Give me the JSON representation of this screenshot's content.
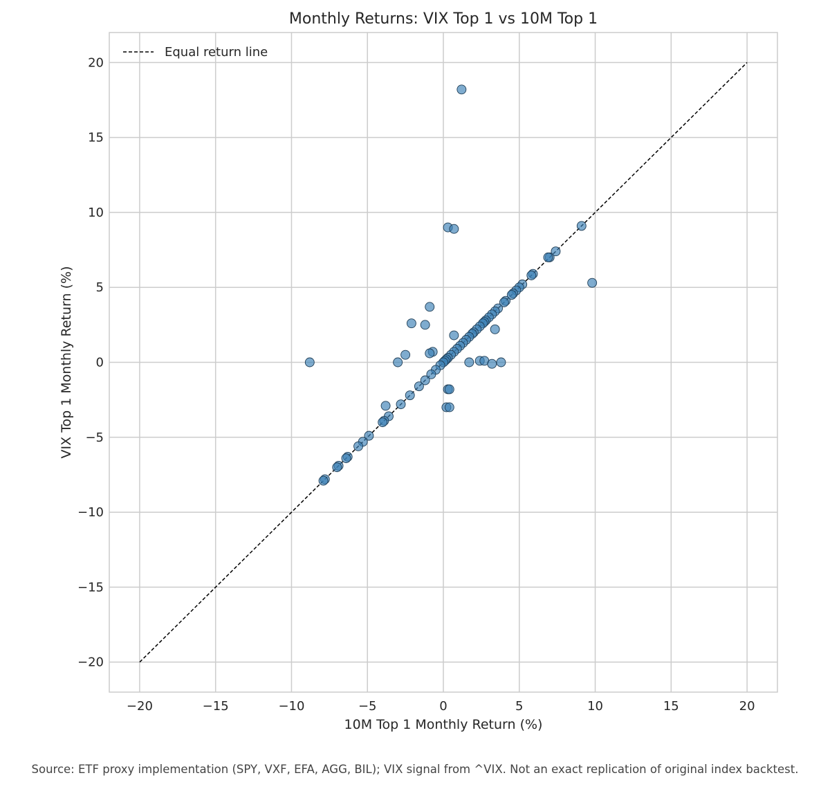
{
  "chart_data": {
    "type": "scatter",
    "title": "Monthly Returns: VIX Top 1 vs 10M Top 1",
    "xlabel": "10M Top 1 Monthly Return (%)",
    "ylabel": "VIX Top 1 Monthly Return (%)",
    "xlim": [
      -22,
      22
    ],
    "ylim": [
      -22,
      22
    ],
    "xticks": [
      -20,
      -15,
      -10,
      -5,
      0,
      5,
      10,
      15,
      20
    ],
    "yticks": [
      -20,
      -15,
      -10,
      -5,
      0,
      5,
      10,
      15,
      20
    ],
    "tick_labels_x": [
      "−20",
      "−15",
      "−10",
      "−5",
      "0",
      "5",
      "10",
      "15",
      "20"
    ],
    "tick_labels_y": [
      "−20",
      "−15",
      "−10",
      "−5",
      "0",
      "5",
      "10",
      "15",
      "20"
    ],
    "grid": true,
    "legend_position": "top-left",
    "reference_line": {
      "name": "Equal return line",
      "x": [
        -20,
        20
      ],
      "y": [
        -20,
        20
      ],
      "style": "dashed",
      "color": "#000000"
    },
    "point_color": "#3b7fb5",
    "points": [
      {
        "x": 1.2,
        "y": 18.2
      },
      {
        "x": 0.3,
        "y": 9.0
      },
      {
        "x": 0.7,
        "y": 8.9
      },
      {
        "x": 9.1,
        "y": 9.1
      },
      {
        "x": 9.8,
        "y": 5.3
      },
      {
        "x": 7.4,
        "y": 7.4
      },
      {
        "x": 7.0,
        "y": 7.0
      },
      {
        "x": 6.9,
        "y": 7.0
      },
      {
        "x": 5.9,
        "y": 5.9
      },
      {
        "x": 5.8,
        "y": 5.8
      },
      {
        "x": 5.2,
        "y": 5.2
      },
      {
        "x": 5.0,
        "y": 5.0
      },
      {
        "x": 4.8,
        "y": 4.8
      },
      {
        "x": 4.6,
        "y": 4.6
      },
      {
        "x": 4.5,
        "y": 4.5
      },
      {
        "x": 4.1,
        "y": 4.1
      },
      {
        "x": 4.0,
        "y": 4.0
      },
      {
        "x": 3.6,
        "y": 3.6
      },
      {
        "x": 3.4,
        "y": 3.4
      },
      {
        "x": 3.2,
        "y": 3.2
      },
      {
        "x": 3.0,
        "y": 3.0
      },
      {
        "x": 2.8,
        "y": 2.8
      },
      {
        "x": 2.7,
        "y": 2.7
      },
      {
        "x": 2.6,
        "y": 2.6
      },
      {
        "x": 2.4,
        "y": 2.4
      },
      {
        "x": 2.2,
        "y": 2.2
      },
      {
        "x": 2.0,
        "y": 2.0
      },
      {
        "x": 1.9,
        "y": 1.9
      },
      {
        "x": 1.7,
        "y": 1.7
      },
      {
        "x": 1.5,
        "y": 1.5
      },
      {
        "x": 1.3,
        "y": 1.3
      },
      {
        "x": 1.1,
        "y": 1.1
      },
      {
        "x": 0.9,
        "y": 0.9
      },
      {
        "x": 0.7,
        "y": 0.7
      },
      {
        "x": 0.5,
        "y": 0.5
      },
      {
        "x": 0.3,
        "y": 0.3
      },
      {
        "x": 0.2,
        "y": 0.2
      },
      {
        "x": 0.1,
        "y": 0.1
      },
      {
        "x": 0.0,
        "y": 0.0
      },
      {
        "x": -0.2,
        "y": -0.2
      },
      {
        "x": -0.5,
        "y": -0.5
      },
      {
        "x": -0.8,
        "y": -0.8
      },
      {
        "x": -1.2,
        "y": -1.2
      },
      {
        "x": -1.6,
        "y": -1.6
      },
      {
        "x": -2.2,
        "y": -2.2
      },
      {
        "x": -2.8,
        "y": -2.8
      },
      {
        "x": -3.6,
        "y": -3.6
      },
      {
        "x": -3.9,
        "y": -3.9
      },
      {
        "x": -4.0,
        "y": -4.0
      },
      {
        "x": -4.9,
        "y": -4.9
      },
      {
        "x": -5.3,
        "y": -5.3
      },
      {
        "x": -5.6,
        "y": -5.6
      },
      {
        "x": -6.3,
        "y": -6.3
      },
      {
        "x": -6.4,
        "y": -6.4
      },
      {
        "x": -6.9,
        "y": -6.9
      },
      {
        "x": -7.0,
        "y": -7.0
      },
      {
        "x": -7.8,
        "y": -7.8
      },
      {
        "x": -7.9,
        "y": -7.9
      },
      {
        "x": -8.8,
        "y": 0.0
      },
      {
        "x": -0.9,
        "y": 3.7
      },
      {
        "x": -2.1,
        "y": 2.6
      },
      {
        "x": -1.2,
        "y": 2.5
      },
      {
        "x": 0.7,
        "y": 1.8
      },
      {
        "x": -0.7,
        "y": 0.7
      },
      {
        "x": -0.9,
        "y": 0.6
      },
      {
        "x": -2.5,
        "y": 0.5
      },
      {
        "x": -3.0,
        "y": 0.0
      },
      {
        "x": 3.4,
        "y": 2.2
      },
      {
        "x": 1.7,
        "y": 0.0
      },
      {
        "x": 2.4,
        "y": 0.1
      },
      {
        "x": 2.7,
        "y": 0.1
      },
      {
        "x": 3.2,
        "y": -0.1
      },
      {
        "x": 3.8,
        "y": 0.0
      },
      {
        "x": 0.3,
        "y": -1.8
      },
      {
        "x": 0.4,
        "y": -1.8
      },
      {
        "x": 0.2,
        "y": -3.0
      },
      {
        "x": 0.4,
        "y": -3.0
      },
      {
        "x": -3.8,
        "y": -2.9
      }
    ]
  },
  "source_note": "Source: ETF proxy implementation (SPY, VXF, EFA, AGG, BIL); VIX signal from ^VIX. Not an exact replication of original index backtest."
}
